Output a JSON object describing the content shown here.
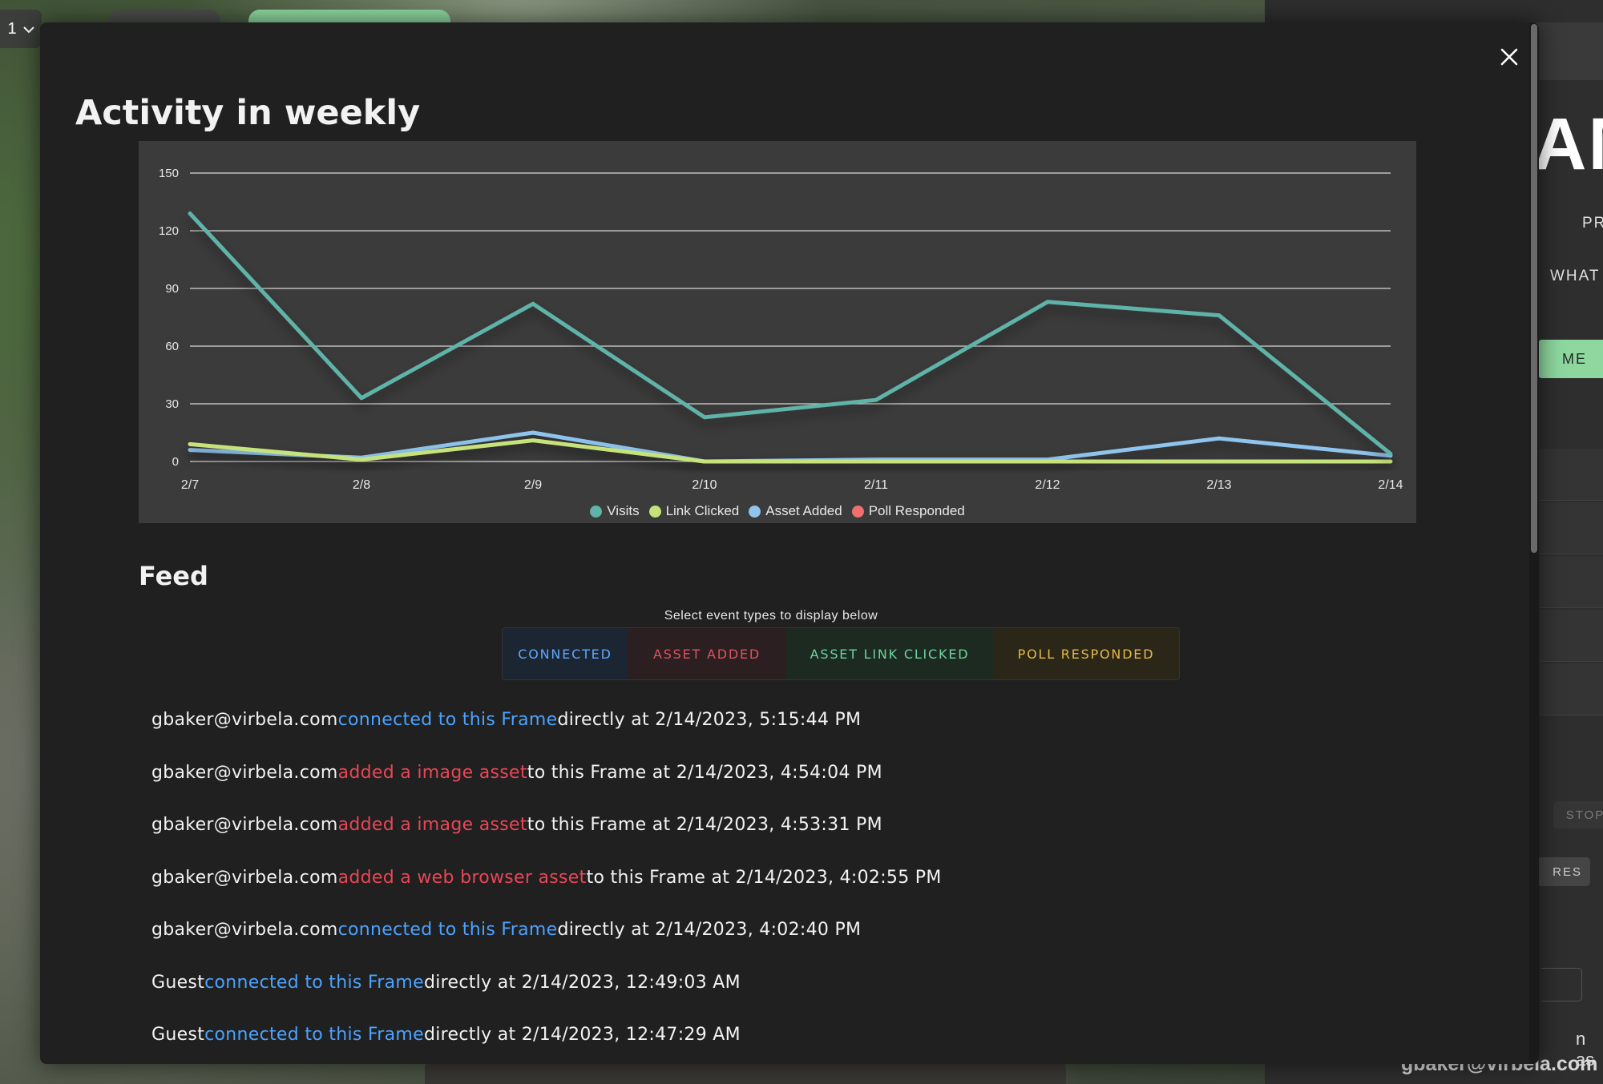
{
  "background": {
    "dropdown_value": "1"
  },
  "side_panel": {
    "big_text": "AM",
    "text1": "PR",
    "text2": "WHAT",
    "green_button": "ME",
    "stop_button": "STOP",
    "res_button": "RES",
    "as_text": "n as",
    "email": "gbaker@virbela.com"
  },
  "modal": {
    "title": "Activity in weekly",
    "close_icon": "close-icon",
    "feed_title": "Feed",
    "filter_caption": "Select event types to display below",
    "filters": {
      "connected": "CONNECTED",
      "asset_added": "ASSET ADDED",
      "asset_link_clicked": "ASSET LINK CLICKED",
      "poll_responded": "POLL RESPONDED"
    },
    "feed": [
      {
        "user": "gbaker@virbela.com",
        "action": "connected to this Frame",
        "action_type": "connected",
        "rest": "directly at 2/14/2023, 5:15:44 PM"
      },
      {
        "user": "gbaker@virbela.com",
        "action": "added a image asset",
        "action_type": "asset",
        "rest": "to this Frame at 2/14/2023, 4:54:04 PM"
      },
      {
        "user": "gbaker@virbela.com",
        "action": "added a image asset",
        "action_type": "asset",
        "rest": "to this Frame at 2/14/2023, 4:53:31 PM"
      },
      {
        "user": "gbaker@virbela.com",
        "action": "added a web browser asset",
        "action_type": "asset",
        "rest": "to this Frame at 2/14/2023, 4:02:55 PM"
      },
      {
        "user": "gbaker@virbela.com",
        "action": "connected to this Frame",
        "action_type": "connected",
        "rest": "directly at 2/14/2023, 4:02:40 PM"
      },
      {
        "user": "Guest",
        "action": "connected to this Frame",
        "action_type": "connected",
        "rest": "directly at 2/14/2023, 12:49:03 AM"
      },
      {
        "user": "Guest",
        "action": "connected to this Frame",
        "action_type": "connected",
        "rest": "directly at 2/14/2023, 12:47:29 AM"
      }
    ]
  },
  "colors": {
    "visits": "#5fb3a8",
    "link_clicked": "#c6e27a",
    "asset_added": "#8ec4ee",
    "poll_responded": "#f07070",
    "connected": "#4aa3ff",
    "asset": "#e84655"
  },
  "chart_data": {
    "type": "line",
    "title": "",
    "xlabel": "",
    "ylabel": "",
    "categories": [
      "2/7",
      "2/8",
      "2/9",
      "2/10",
      "2/11",
      "2/12",
      "2/13",
      "2/14"
    ],
    "ylim": [
      0,
      150
    ],
    "yticks": [
      0,
      30,
      60,
      90,
      120,
      150
    ],
    "grid": true,
    "legend_position": "bottom",
    "series": [
      {
        "name": "Visits",
        "color": "#5fb3a8",
        "values": [
          129,
          33,
          82,
          23,
          32,
          83,
          76,
          4
        ]
      },
      {
        "name": "Link Clicked",
        "color": "#c6e27a",
        "values": [
          9,
          1,
          11,
          0,
          0,
          0,
          0,
          0
        ]
      },
      {
        "name": "Asset Added",
        "color": "#8ec4ee",
        "values": [
          6,
          2,
          15,
          0,
          1,
          1,
          12,
          3
        ]
      },
      {
        "name": "Poll Responded",
        "color": "#f07070",
        "values": [
          0,
          0,
          0,
          0,
          0,
          0,
          0,
          0
        ]
      }
    ]
  }
}
